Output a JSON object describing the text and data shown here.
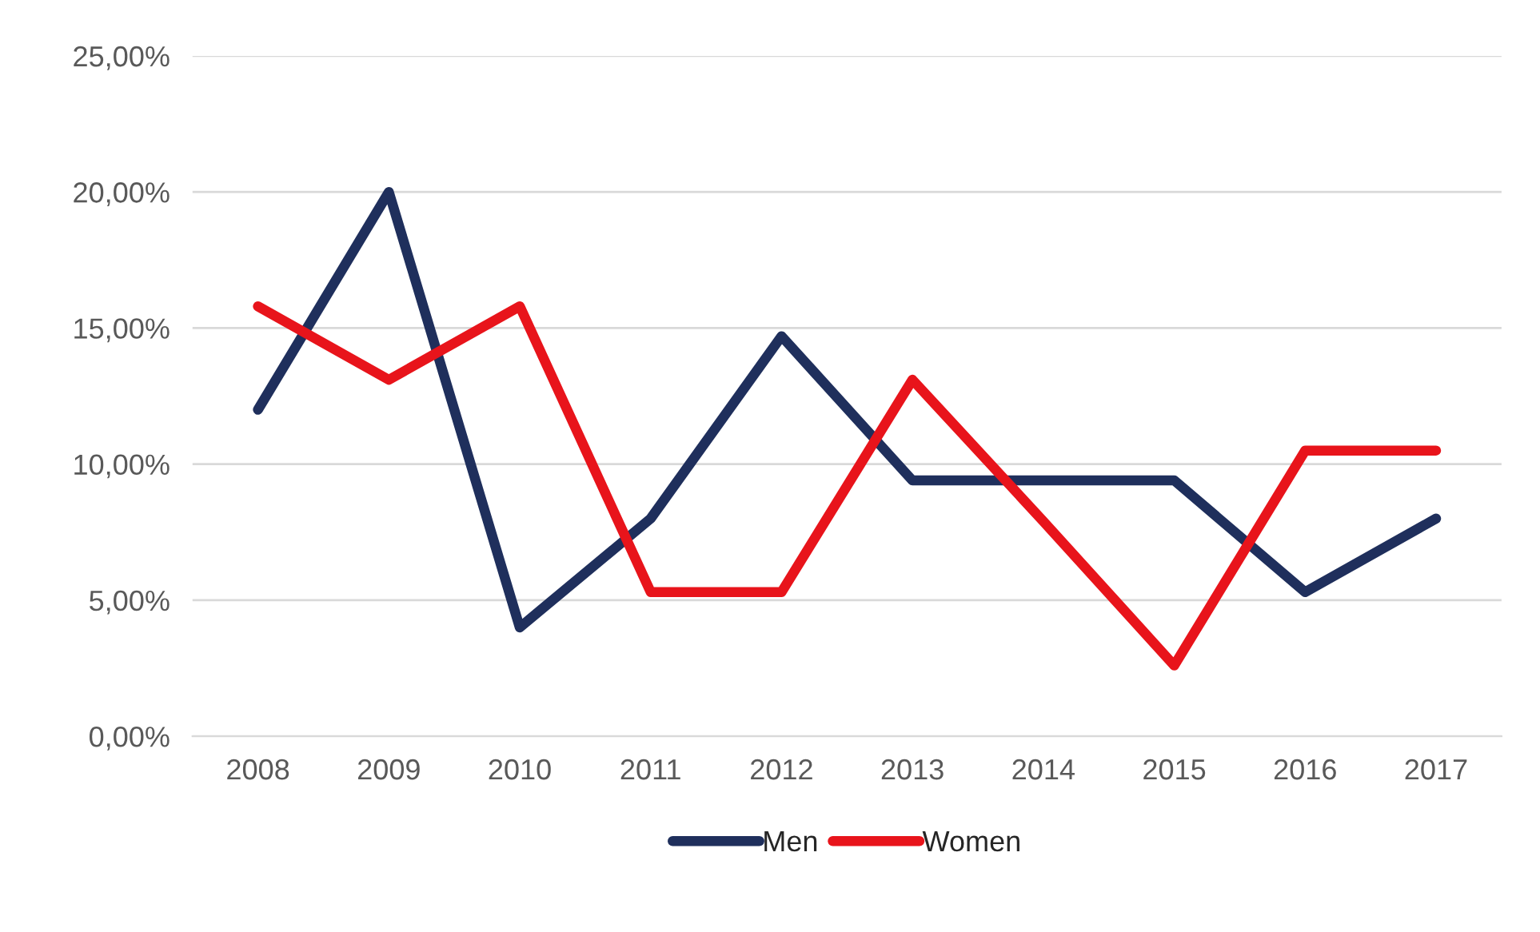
{
  "chart_data": {
    "type": "line",
    "categories": [
      "2008",
      "2009",
      "2010",
      "2011",
      "2012",
      "2013",
      "2014",
      "2015",
      "2016",
      "2017"
    ],
    "series": [
      {
        "name": "Men",
        "color": "#1f2f5c",
        "values": [
          12.0,
          20.0,
          4.0,
          8.0,
          14.7,
          9.4,
          9.4,
          9.4,
          5.3,
          8.0
        ]
      },
      {
        "name": "Women",
        "color": "#e8141b",
        "values": [
          15.8,
          13.1,
          15.8,
          5.3,
          5.3,
          13.1,
          7.9,
          2.6,
          10.5,
          10.5
        ]
      }
    ],
    "ylim": [
      0,
      25
    ],
    "yticks": [
      {
        "value": 0,
        "label": "0,00%"
      },
      {
        "value": 5,
        "label": "5,00%"
      },
      {
        "value": 10,
        "label": "10,00%"
      },
      {
        "value": 15,
        "label": "15,00%"
      },
      {
        "value": 20,
        "label": "20,00%"
      },
      {
        "value": 25,
        "label": "25,00%"
      }
    ],
    "grid": "y",
    "legend": "bottom",
    "marker": "none",
    "line_style": "solid"
  }
}
